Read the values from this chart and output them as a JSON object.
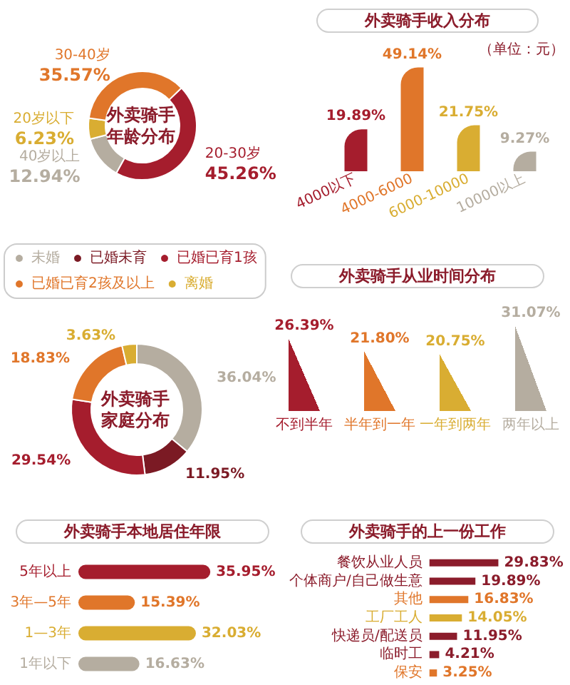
{
  "chart_data": [
    {
      "type": "donut",
      "title": "外卖骑手年龄分布",
      "categories": [
        "20-30岁",
        "40岁以上",
        "20岁以下",
        "30-40岁"
      ],
      "values": [
        45.26,
        12.94,
        6.23,
        35.57
      ],
      "colors": [
        "#a51d2d",
        "#b5ada0",
        "#d9ad32",
        "#e0762a"
      ],
      "value_labels": [
        "45.26%",
        "12.94%",
        "6.23%",
        "35.57%"
      ]
    },
    {
      "type": "bar",
      "title": "外卖骑手收入分布",
      "subtitle": "（单位：元）",
      "categories": [
        "4000以下",
        "4000-6000",
        "6000-10000",
        "10000以上"
      ],
      "values": [
        19.89,
        49.14,
        21.75,
        9.27
      ],
      "colors": [
        "#a51d2d",
        "#e0762a",
        "#d9ad32",
        "#b5ada0"
      ],
      "value_labels": [
        "19.89%",
        "49.14%",
        "21.75%",
        "9.27%"
      ],
      "tick_labels": "x"
    },
    {
      "type": "donut",
      "title": "外卖骑手家庭分布",
      "categories": [
        "未婚",
        "已婚未育",
        "已婚已育1孩",
        "已婚已育2孩及以上",
        "离婚"
      ],
      "values": [
        36.04,
        11.95,
        29.54,
        18.83,
        3.63
      ],
      "colors": [
        "#b5ada0",
        "#7b1a24",
        "#a51d2d",
        "#e0762a",
        "#d9ad32"
      ],
      "value_labels": [
        "36.04%",
        "11.95%",
        "29.54%",
        "18.83%",
        "3.63%"
      ],
      "legend": "top"
    },
    {
      "type": "bar",
      "title": "外卖骑手从业时间分布",
      "categories": [
        "不到半年",
        "半年到一年",
        "一年到两年",
        "两年以上"
      ],
      "values": [
        26.39,
        21.8,
        20.75,
        31.07
      ],
      "colors": [
        "#a51d2d",
        "#e0762a",
        "#d9ad32",
        "#b5ada0"
      ],
      "value_labels": [
        "26.39%",
        "21.80%",
        "20.75%",
        "31.07%"
      ],
      "marker": "triangle",
      "tick_labels": "x"
    },
    {
      "type": "bar",
      "orientation": "horizontal",
      "title": "外卖骑手本地居住年限",
      "categories": [
        "5年以上",
        "3年—5年",
        "1—3年",
        "1年以下"
      ],
      "values": [
        35.95,
        15.39,
        32.03,
        16.63
      ],
      "colors": [
        "#a51d2d",
        "#e0762a",
        "#d9ad32",
        "#b5ada0"
      ],
      "value_labels": [
        "35.95%",
        "15.39%",
        "32.03%",
        "16.63%"
      ],
      "tick_labels": "y"
    },
    {
      "type": "bar",
      "orientation": "horizontal",
      "title": "外卖骑手的上一份工作",
      "categories": [
        "餐饮从业人员",
        "个体商户/自己做生意",
        "其他",
        "工厂工人",
        "快递员/配送员",
        "临时工",
        "保安"
      ],
      "values": [
        29.83,
        19.89,
        16.83,
        14.05,
        11.95,
        4.21,
        3.25
      ],
      "colors": [
        "#8b1c2b",
        "#8b1c2b",
        "#e0762a",
        "#d9ad32",
        "#8b1c2b",
        "#8b1c2b",
        "#e0762a"
      ],
      "value_labels": [
        "29.83%",
        "19.89%",
        "16.83%",
        "14.05%",
        "11.95%",
        "4.21%",
        "3.25%"
      ],
      "tick_labels": "y"
    }
  ]
}
